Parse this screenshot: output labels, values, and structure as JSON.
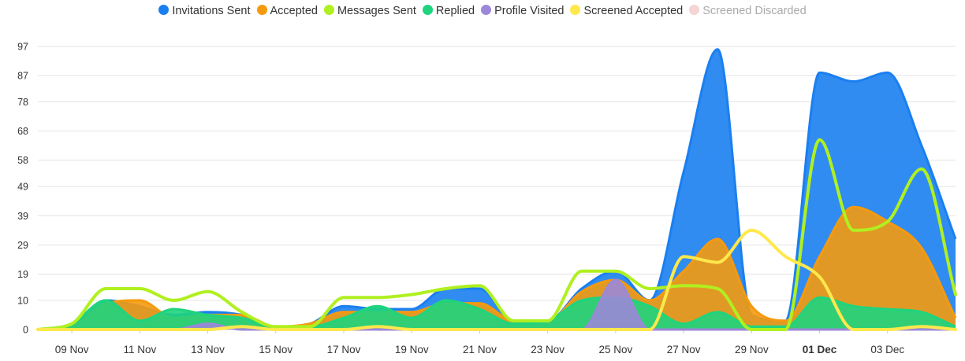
{
  "chart_data": {
    "type": "area",
    "legend_position": "top-center",
    "grid": true,
    "ylim": [
      0,
      97
    ],
    "y_ticks": [
      "0",
      "10",
      "19",
      "29",
      "39",
      "49",
      "58",
      "68",
      "78",
      "87",
      "97"
    ],
    "x_tick_labels": [
      {
        "label": "09 Nov",
        "day": 9,
        "bold": false
      },
      {
        "label": "11 Nov",
        "day": 11,
        "bold": false
      },
      {
        "label": "13 Nov",
        "day": 13,
        "bold": false
      },
      {
        "label": "15 Nov",
        "day": 15,
        "bold": false
      },
      {
        "label": "17 Nov",
        "day": 17,
        "bold": false
      },
      {
        "label": "19 Nov",
        "day": 19,
        "bold": false
      },
      {
        "label": "21 Nov",
        "day": 21,
        "bold": false
      },
      {
        "label": "23 Nov",
        "day": 23,
        "bold": false
      },
      {
        "label": "25 Nov",
        "day": 25,
        "bold": false
      },
      {
        "label": "27 Nov",
        "day": 27,
        "bold": false
      },
      {
        "label": "29 Nov",
        "day": 29,
        "bold": false
      },
      {
        "label": "01 Dec",
        "day": 31,
        "bold": true
      },
      {
        "label": "03 Dec",
        "day": 33,
        "bold": false
      }
    ],
    "x_days": [
      8,
      9,
      10,
      11,
      12,
      13,
      14,
      15,
      16,
      17,
      18,
      19,
      20,
      21,
      22,
      23,
      24,
      25,
      26,
      27,
      28,
      29,
      30,
      31,
      32,
      33,
      34,
      35
    ],
    "series": [
      {
        "name": "Invitations Sent",
        "color": "#1a7ff0",
        "kind": "area",
        "values": [
          0,
          2,
          10,
          8,
          5,
          6,
          5,
          1,
          2,
          8,
          7,
          7,
          14,
          14,
          3,
          3,
          14,
          20,
          10,
          54,
          96,
          5,
          3,
          88,
          85,
          88,
          63,
          31
        ]
      },
      {
        "name": "Accepted",
        "color": "#f59a0e",
        "kind": "area",
        "values": [
          0,
          1,
          9,
          10,
          4,
          5,
          5,
          1,
          2,
          6,
          6,
          6,
          9,
          9,
          3,
          3,
          13,
          17,
          10,
          20,
          31,
          8,
          3,
          25,
          42,
          37,
          28,
          4
        ]
      },
      {
        "name": "Messages Sent",
        "color": "#b0f020",
        "kind": "line",
        "values": [
          0,
          2,
          14,
          14,
          10,
          13,
          6,
          1,
          1,
          11,
          11,
          12,
          14,
          15,
          3,
          3,
          20,
          20,
          14,
          15,
          14,
          0,
          0,
          65,
          34,
          37,
          55,
          12
        ]
      },
      {
        "name": "Replied",
        "color": "#1ed47e",
        "kind": "area",
        "values": [
          0,
          2,
          10,
          3,
          7,
          5,
          4,
          1,
          1,
          4,
          8,
          4,
          10,
          7,
          2,
          3,
          10,
          11,
          8,
          2,
          6,
          1,
          1,
          11,
          8,
          7,
          6,
          1
        ]
      },
      {
        "name": "Profile Visited",
        "color": "#9b88d8",
        "kind": "area",
        "values": [
          0,
          0,
          0,
          0,
          0,
          2,
          0,
          0,
          0,
          0,
          0,
          0,
          0,
          0,
          0,
          0,
          0,
          17,
          0,
          0,
          0,
          0,
          0,
          0,
          0,
          0,
          0,
          0
        ]
      },
      {
        "name": "Screened Accepted",
        "color": "#ffe84c",
        "kind": "line",
        "values": [
          0,
          0,
          0,
          0,
          0,
          0,
          1,
          0,
          0,
          0,
          1,
          0,
          0,
          0,
          0,
          0,
          0,
          0,
          0,
          25,
          23,
          34,
          25,
          18,
          0,
          0,
          1,
          0
        ]
      },
      {
        "name": "Screened Discarded",
        "color": "#f5d4d4",
        "kind": "hidden",
        "values": []
      }
    ]
  }
}
